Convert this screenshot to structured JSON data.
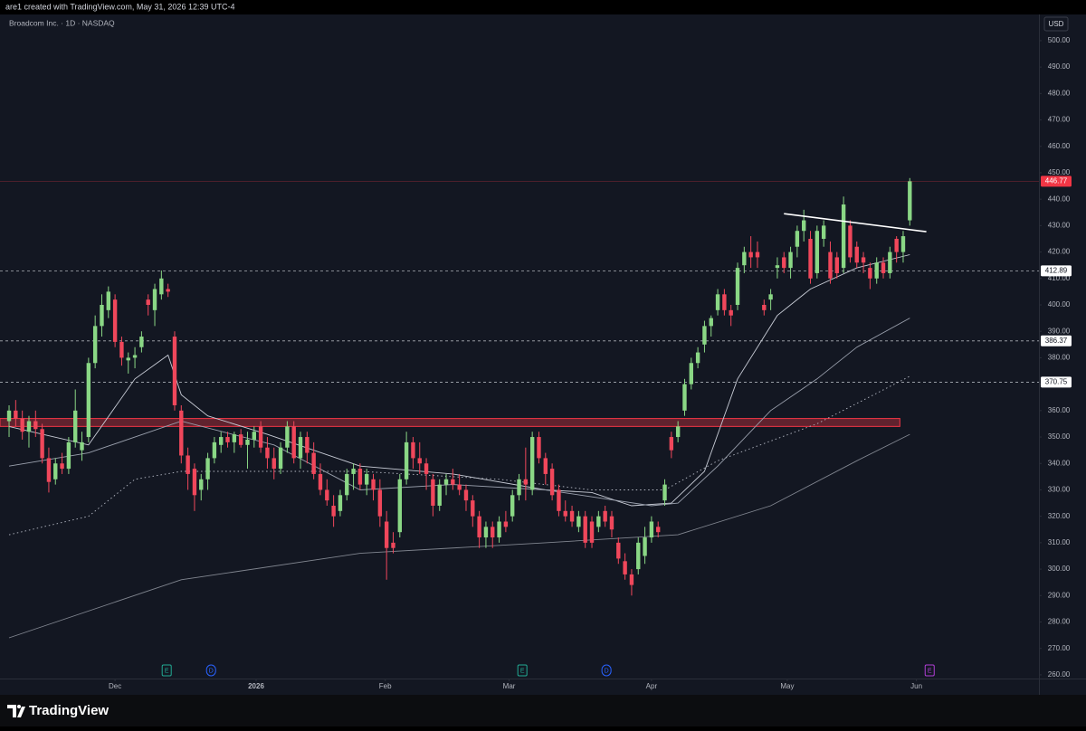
{
  "attribution": "are1 created with TradingView.com, May 31, 2026 12:39 UTC-4",
  "footer": "TradingView",
  "chart_data": {
    "type": "candlestick",
    "title": "Broadcom Inc. · 1D · NASDAQ",
    "currency": "USD",
    "up_color": "#8ad785",
    "down_color": "#f0475b",
    "xlim": [
      -1.37,
      155.5
    ],
    "ylim": [
      258.6,
      509.9
    ],
    "xticks": [
      {
        "value": 16,
        "label": "Dec"
      },
      {
        "value": 37.3,
        "label": "2026"
      },
      {
        "value": 56.8,
        "label": "Feb"
      },
      {
        "value": 75.5,
        "label": "Mar"
      },
      {
        "value": 97,
        "label": "Apr"
      },
      {
        "value": 117.5,
        "label": "May"
      },
      {
        "value": 137,
        "label": "Jun"
      }
    ],
    "yticks": [
      {
        "value": 260,
        "label": "260.00"
      },
      {
        "value": 270,
        "label": "270.00"
      },
      {
        "value": 280,
        "label": "280.00"
      },
      {
        "value": 290,
        "label": "290.00"
      },
      {
        "value": 300,
        "label": "300.00"
      },
      {
        "value": 310,
        "label": "310.00"
      },
      {
        "value": 320,
        "label": "320.00"
      },
      {
        "value": 330,
        "label": "330.00"
      },
      {
        "value": 340,
        "label": "340.00"
      },
      {
        "value": 350,
        "label": "350.00"
      },
      {
        "value": 360,
        "label": "360.00"
      },
      {
        "value": 370,
        "label": "370.00"
      },
      {
        "value": 380,
        "label": "380.00"
      },
      {
        "value": 390,
        "label": "390.00"
      },
      {
        "value": 400,
        "label": "400.00"
      },
      {
        "value": 410,
        "label": "410.00"
      },
      {
        "value": 420,
        "label": "420.00"
      },
      {
        "value": 430,
        "label": "430.00"
      },
      {
        "value": 440,
        "label": "440.00"
      },
      {
        "value": 450,
        "label": "450.00"
      },
      {
        "value": 460,
        "label": "460.00"
      },
      {
        "value": 470,
        "label": "470.00"
      },
      {
        "value": 480,
        "label": "480.00"
      },
      {
        "value": 490,
        "label": "490.00"
      },
      {
        "value": 500,
        "label": "500.00"
      }
    ],
    "ohlc": [
      [
        356,
        362,
        350,
        360
      ],
      [
        360,
        364,
        354,
        357
      ],
      [
        357,
        360,
        349,
        352
      ],
      [
        352,
        358,
        346,
        356
      ],
      [
        356,
        360,
        350,
        353
      ],
      [
        353,
        355,
        340,
        342
      ],
      [
        342,
        346,
        329,
        333
      ],
      [
        334,
        342,
        332,
        340
      ],
      [
        340,
        344,
        336,
        338
      ],
      [
        338,
        350,
        336,
        348
      ],
      [
        348,
        368,
        346,
        360
      ],
      [
        345,
        352,
        341,
        348
      ],
      [
        350,
        380,
        348,
        378
      ],
      [
        378,
        396,
        376,
        392
      ],
      [
        392,
        404,
        388,
        400
      ],
      [
        398,
        407,
        395,
        405
      ],
      [
        402,
        404,
        384,
        386
      ],
      [
        386,
        388,
        377,
        380
      ],
      [
        379,
        382,
        374,
        380
      ],
      [
        380,
        384,
        376,
        381
      ],
      [
        384,
        390,
        382,
        388
      ],
      [
        402,
        404,
        396,
        400
      ],
      [
        398,
        408,
        392,
        406
      ],
      [
        404,
        413,
        402,
        410
      ],
      [
        406,
        408,
        403,
        405
      ],
      [
        388,
        390,
        360,
        362
      ],
      [
        360,
        362,
        340,
        343
      ],
      [
        343,
        346,
        330,
        336
      ],
      [
        338,
        340,
        322,
        328
      ],
      [
        330,
        336,
        326,
        334
      ],
      [
        334,
        344,
        330,
        342
      ],
      [
        342,
        350,
        340,
        348
      ],
      [
        347,
        352,
        344,
        350
      ],
      [
        350,
        352,
        346,
        348
      ],
      [
        348,
        352,
        344,
        351
      ],
      [
        351,
        353,
        346,
        347
      ],
      [
        347,
        352,
        338,
        349
      ],
      [
        349,
        354,
        346,
        352
      ],
      [
        354,
        356,
        344,
        346
      ],
      [
        346,
        350,
        338,
        342
      ],
      [
        342,
        346,
        334,
        338
      ],
      [
        338,
        348,
        336,
        346
      ],
      [
        346,
        356,
        344,
        354
      ],
      [
        354,
        356,
        340,
        342
      ],
      [
        342,
        352,
        338,
        350
      ],
      [
        350,
        352,
        340,
        344
      ],
      [
        344,
        348,
        334,
        336
      ],
      [
        336,
        340,
        328,
        330
      ],
      [
        330,
        334,
        324,
        326
      ],
      [
        324,
        328,
        316,
        320
      ],
      [
        322,
        330,
        320,
        328
      ],
      [
        328,
        338,
        326,
        336
      ],
      [
        336,
        340,
        330,
        338
      ],
      [
        338,
        340,
        330,
        332
      ],
      [
        332,
        338,
        328,
        336
      ],
      [
        334,
        336,
        326,
        330
      ],
      [
        330,
        334,
        316,
        320
      ],
      [
        318,
        322,
        296,
        308
      ],
      [
        310,
        314,
        306,
        308
      ],
      [
        314,
        336,
        312,
        334
      ],
      [
        334,
        352,
        332,
        348
      ],
      [
        348,
        350,
        338,
        342
      ],
      [
        342,
        348,
        336,
        340
      ],
      [
        340,
        342,
        330,
        336
      ],
      [
        334,
        336,
        320,
        324
      ],
      [
        324,
        334,
        322,
        332
      ],
      [
        332,
        336,
        328,
        334
      ],
      [
        334,
        338,
        330,
        332
      ],
      [
        332,
        336,
        328,
        330
      ],
      [
        330,
        332,
        322,
        326
      ],
      [
        326,
        328,
        316,
        320
      ],
      [
        320,
        322,
        308,
        312
      ],
      [
        312,
        318,
        308,
        316
      ],
      [
        316,
        318,
        308,
        312
      ],
      [
        312,
        320,
        310,
        318
      ],
      [
        318,
        322,
        314,
        316
      ],
      [
        320,
        330,
        318,
        328
      ],
      [
        328,
        336,
        326,
        334
      ],
      [
        334,
        346,
        326,
        332
      ],
      [
        330,
        352,
        328,
        350
      ],
      [
        350,
        352,
        340,
        342
      ],
      [
        342,
        344,
        332,
        336
      ],
      [
        338,
        340,
        326,
        328
      ],
      [
        330,
        332,
        320,
        322
      ],
      [
        322,
        326,
        318,
        320
      ],
      [
        322,
        324,
        316,
        318
      ],
      [
        316,
        322,
        314,
        320
      ],
      [
        320,
        322,
        308,
        310
      ],
      [
        318,
        320,
        308,
        310
      ],
      [
        316,
        322,
        314,
        320
      ],
      [
        322,
        324,
        316,
        318
      ],
      [
        320,
        322,
        312,
        315
      ],
      [
        310,
        312,
        302,
        304
      ],
      [
        303,
        306,
        296,
        298
      ],
      [
        298,
        300,
        290,
        294
      ],
      [
        300,
        312,
        298,
        310
      ],
      [
        305,
        316,
        302,
        312
      ],
      [
        312,
        320,
        310,
        318
      ],
      [
        316,
        318,
        312,
        314
      ],
      [
        326,
        334,
        324,
        332
      ],
      [
        350,
        352,
        342,
        345
      ],
      [
        350,
        356,
        348,
        354
      ],
      [
        360,
        372,
        358,
        370
      ],
      [
        370,
        380,
        368,
        378
      ],
      [
        378,
        384,
        376,
        382
      ],
      [
        385,
        394,
        382,
        392
      ],
      [
        392,
        396,
        388,
        395
      ],
      [
        398,
        406,
        396,
        404
      ],
      [
        404,
        406,
        396,
        398
      ],
      [
        398,
        400,
        392,
        396
      ],
      [
        400,
        416,
        398,
        414
      ],
      [
        415,
        422,
        412,
        420
      ],
      [
        420,
        426,
        414,
        418
      ],
      [
        420,
        424,
        414,
        418
      ],
      [
        400,
        402,
        396,
        398
      ],
      [
        402,
        406,
        398,
        404
      ],
      [
        414,
        418,
        410,
        415
      ],
      [
        418,
        420,
        412,
        414
      ],
      [
        414,
        422,
        410,
        420
      ],
      [
        422,
        430,
        418,
        428
      ],
      [
        428,
        436,
        424,
        432
      ],
      [
        425,
        428,
        408,
        410
      ],
      [
        412,
        430,
        410,
        428
      ],
      [
        425,
        432,
        422,
        430
      ],
      [
        420,
        424,
        408,
        410
      ],
      [
        418,
        420,
        410,
        412
      ],
      [
        414,
        441,
        412,
        438
      ],
      [
        430,
        432,
        416,
        418
      ],
      [
        422,
        424,
        414,
        416
      ],
      [
        418,
        420,
        412,
        416
      ],
      [
        414,
        416,
        406,
        410
      ],
      [
        410,
        418,
        408,
        416
      ],
      [
        416,
        418,
        410,
        412
      ],
      [
        412,
        422,
        410,
        420
      ],
      [
        425,
        426,
        416,
        420
      ],
      [
        420,
        428,
        416,
        426
      ],
      [
        432,
        448,
        430,
        446.77
      ]
    ],
    "overlays": [
      {
        "color": "#c8ccd6",
        "style": "solid",
        "x": [
          0,
          12,
          19,
          24,
          26,
          30,
          39,
          53,
          67,
          81,
          88,
          94,
          100,
          105,
          110,
          116,
          121,
          128,
          136
        ],
        "values": [
          354,
          347,
          372,
          381,
          366,
          358,
          351,
          339,
          336,
          330,
          329,
          324,
          325,
          337,
          372,
          396,
          406,
          414,
          419
        ]
      },
      {
        "color": "#9aa0ad",
        "style": "solid",
        "x": [
          0,
          12,
          26,
          40,
          53,
          67,
          81,
          97,
          101,
          107,
          115,
          122,
          128,
          136
        ],
        "values": [
          339,
          344,
          356,
          347,
          330,
          332,
          330,
          324,
          325,
          339,
          360,
          372,
          384,
          395
        ]
      },
      {
        "color": "#b5b9c4",
        "style": "dotted",
        "x": [
          0,
          12,
          19,
          26,
          53,
          74,
          88,
          99,
          107,
          122,
          136
        ],
        "values": [
          313,
          320,
          334,
          337,
          337,
          334,
          330,
          330,
          341,
          355,
          373
        ]
      },
      {
        "color": "#80858f",
        "style": "solid",
        "x": [
          0,
          26,
          53,
          81,
          101,
          115,
          128,
          136
        ],
        "values": [
          274,
          296,
          306,
          310,
          313,
          324,
          341,
          351
        ]
      }
    ],
    "zone": {
      "low": 354,
      "high": 357,
      "x_end": 134.5,
      "color": "#f23645"
    },
    "trendline": {
      "x": [
        117,
        138.5
      ],
      "values": [
        434.5,
        427.7
      ],
      "color": "#ffffff"
    },
    "price_lines": [
      {
        "value": 446.77,
        "color": "#f23645",
        "style": "solid"
      },
      {
        "value": 412.89,
        "color": "#d1d4dc",
        "style": "dashed"
      },
      {
        "value": 386.37,
        "color": "#d1d4dc",
        "style": "dashed"
      },
      {
        "value": 370.75,
        "color": "#d1d4dc",
        "style": "dashed"
      }
    ],
    "events": [
      {
        "x": 23.8,
        "label": "E",
        "color": "#22ab94"
      },
      {
        "x": 30.5,
        "label": "D",
        "color": "#2962ff"
      },
      {
        "x": 77.5,
        "label": "E",
        "color": "#22ab94"
      },
      {
        "x": 90.2,
        "label": "D",
        "color": "#2962ff"
      },
      {
        "x": 139,
        "label": "E",
        "color": "#b13fd6"
      }
    ]
  }
}
